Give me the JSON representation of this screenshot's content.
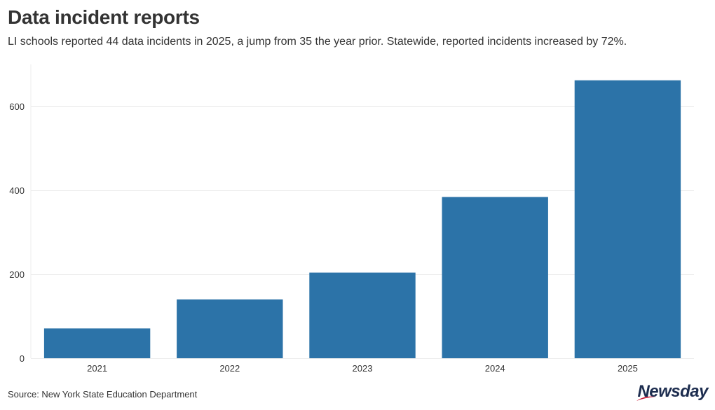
{
  "header": {
    "title": "Data incident reports",
    "subtitle": "LI schools reported 44 data incidents in 2025, a jump from 35 the year prior. Statewide, reported incidents increased by 72%."
  },
  "footer": {
    "source": "Source: New York State Education Department",
    "logo_text": "Newsday"
  },
  "colors": {
    "bar": "#2c73a8",
    "grid": "#ececec",
    "text": "#333333",
    "logo": "#1d2d4f",
    "logo_accent": "#c8102e"
  },
  "chart_data": {
    "type": "bar",
    "categories": [
      "2021",
      "2022",
      "2023",
      "2024",
      "2025"
    ],
    "values": [
      71,
      140,
      204,
      384,
      662
    ],
    "ylim": [
      0,
      700
    ],
    "yticks": [
      0,
      200,
      400,
      600
    ],
    "grid": true
  }
}
